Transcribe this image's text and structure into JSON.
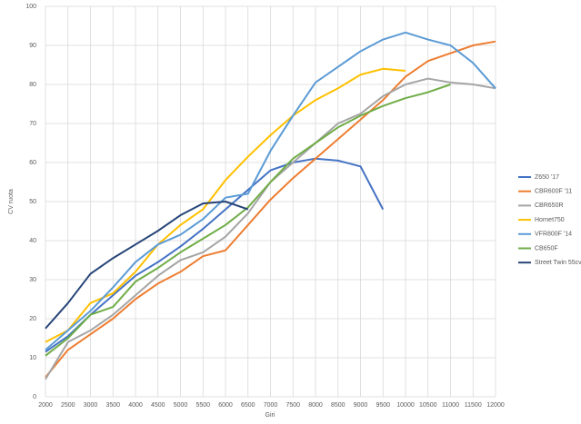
{
  "chart_data": {
    "type": "line",
    "x_label": "Giri",
    "y_label": "CV ruota",
    "x": [
      2000,
      2500,
      3000,
      3500,
      4000,
      4500,
      5000,
      5500,
      6000,
      6500,
      7000,
      7500,
      8000,
      8500,
      9000,
      9500,
      10000,
      10500,
      11000,
      11500,
      12000
    ],
    "xlim": [
      2000,
      12000
    ],
    "xticks": [
      2000,
      2500,
      3000,
      3500,
      4000,
      4500,
      5000,
      5500,
      6000,
      6500,
      7000,
      7500,
      8000,
      8500,
      9000,
      9500,
      10000,
      10500,
      11000,
      11500,
      12000
    ],
    "ylim": [
      0,
      100
    ],
    "yticks": [
      0,
      10,
      20,
      30,
      40,
      50,
      60,
      70,
      80,
      90,
      100
    ],
    "grid": true,
    "legend": "right",
    "series": [
      {
        "name": "Z650 '17",
        "color": "#4472c4",
        "values": [
          11.5,
          15.5,
          21,
          26,
          31,
          34.5,
          38.5,
          43,
          48,
          53,
          58,
          60,
          61,
          60.5,
          59,
          48,
          null,
          null,
          null,
          null,
          null
        ]
      },
      {
        "name": "CBR600F '11",
        "color": "#ed7d31",
        "values": [
          5,
          12,
          16,
          20,
          25,
          29,
          32,
          36,
          37.5,
          44,
          50.5,
          56,
          61,
          66,
          71,
          76,
          82,
          86,
          88,
          90,
          91
        ]
      },
      {
        "name": "CBR650R",
        "color": "#a5a5a5",
        "values": [
          4.5,
          14,
          17,
          21,
          26,
          31,
          35,
          37,
          41,
          47,
          55,
          60,
          65,
          70,
          72.5,
          77,
          80,
          81.5,
          80.5,
          80,
          79
        ]
      },
      {
        "name": "Hornet750",
        "color": "#ffc000",
        "values": [
          14,
          17,
          24,
          26.5,
          32,
          39,
          44,
          48,
          55.5,
          61.5,
          67,
          72,
          76,
          79,
          82.5,
          84,
          83.5,
          null,
          null,
          null,
          null
        ]
      },
      {
        "name": "VFR800F '14",
        "color": "#5b9bd5",
        "values": [
          12,
          17,
          22,
          28,
          34.5,
          39,
          41.5,
          45.5,
          51,
          52,
          63,
          72,
          80.5,
          84.5,
          88.5,
          91.5,
          93.3,
          91.5,
          90,
          85.5,
          79
        ]
      },
      {
        "name": "CB650F",
        "color": "#70ad47",
        "values": [
          10.5,
          15,
          21,
          23,
          29.5,
          33,
          37,
          40.5,
          44,
          48.5,
          55,
          61,
          65,
          69,
          72,
          74.5,
          76.5,
          78,
          80,
          null,
          null
        ]
      },
      {
        "name": "Street Twin 55cv",
        "color": "#264478",
        "values": [
          17.5,
          24,
          31.5,
          35.5,
          39,
          42.5,
          46.5,
          49.5,
          50,
          48,
          null,
          null,
          null,
          null,
          null,
          null,
          null,
          null,
          null,
          null,
          null
        ]
      }
    ]
  }
}
